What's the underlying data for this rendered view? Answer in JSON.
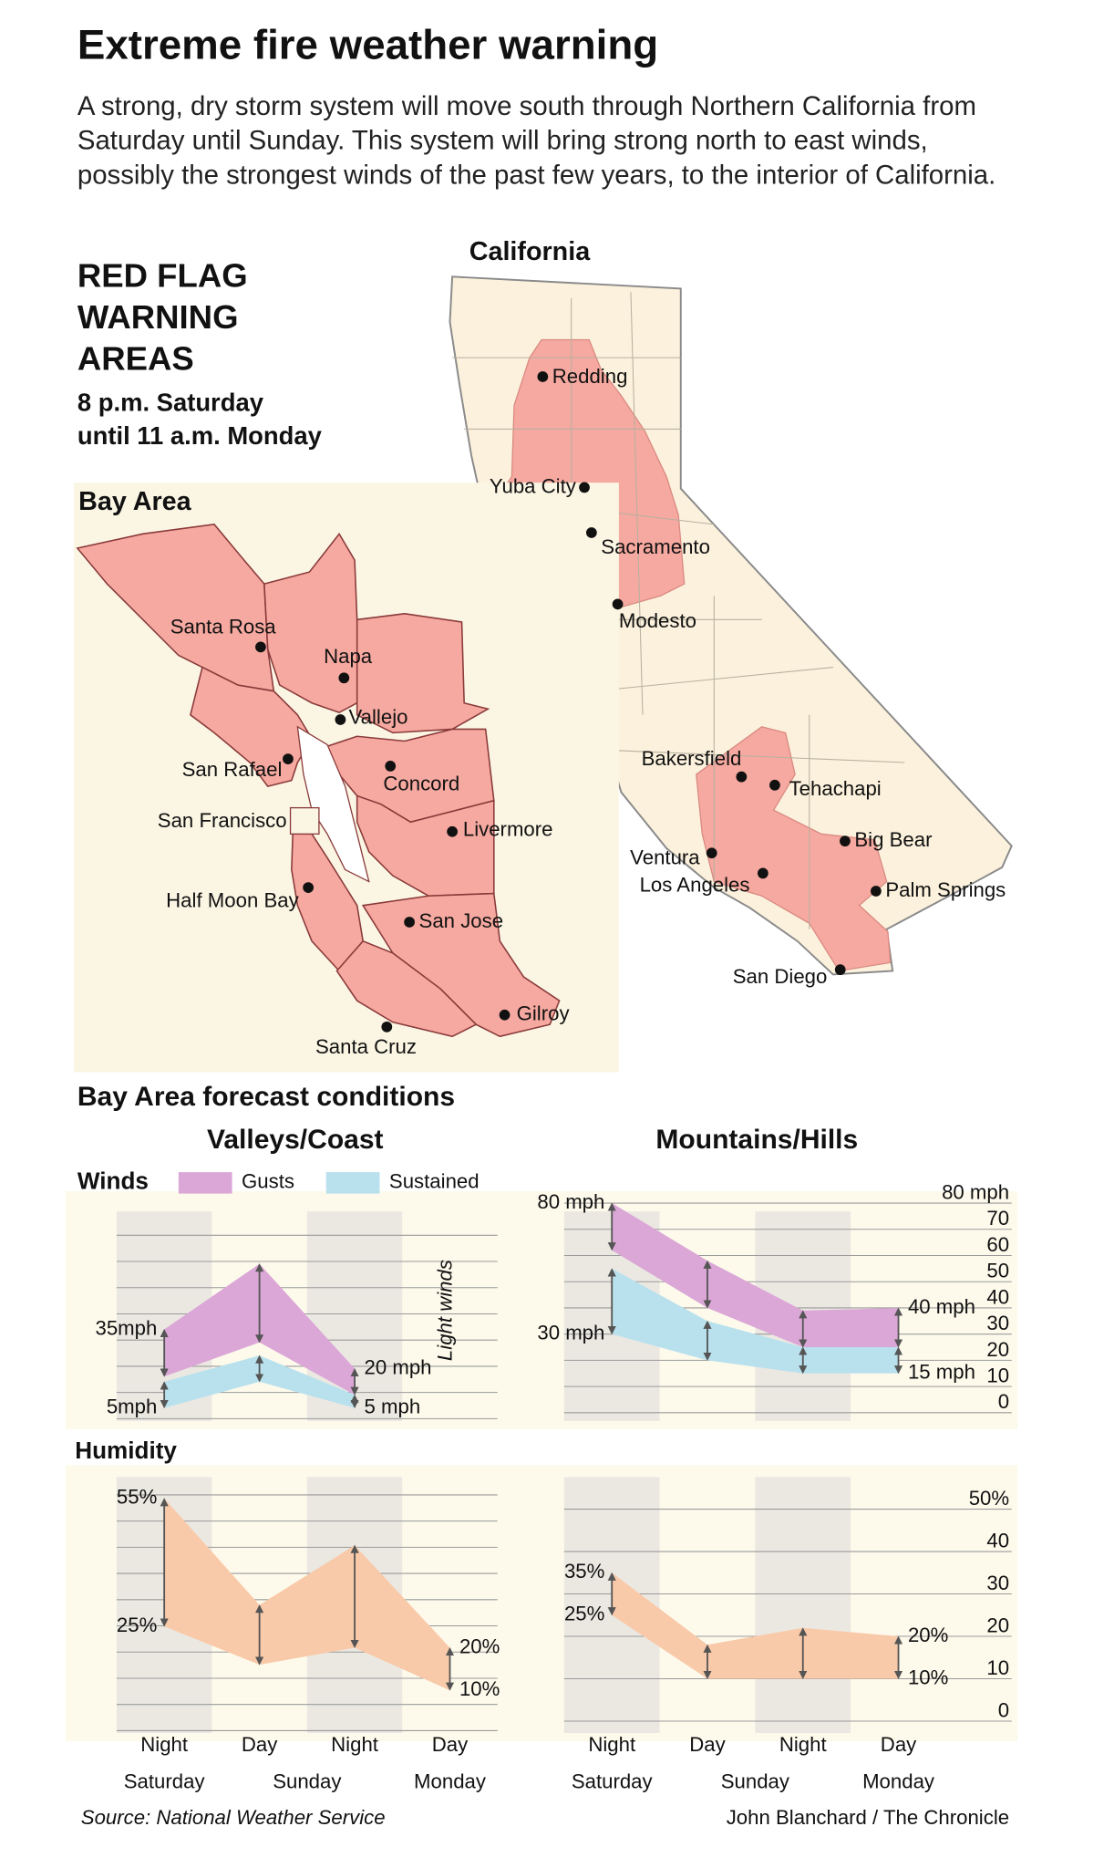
{
  "title": "Extreme fire weather warning",
  "intro": "A strong, dry storm system will move south through Northern California from Saturday until Sunday. This system will bring strong north to east winds, possibly the strongest winds of the past few years, to the interior of California.",
  "warning": {
    "heading": [
      "RED FLAG",
      "WARNING",
      "AREAS"
    ],
    "period": [
      "8 p.m. Saturday",
      "until 11 a.m. Monday"
    ]
  },
  "california_map": {
    "title": "California",
    "cities": [
      "Redding",
      "Yuba City",
      "Sacramento",
      "Modesto",
      "Bakersfield",
      "Tehachapi",
      "Big Bear",
      "Ventura",
      "Los Angeles",
      "Palm Springs",
      "San Diego"
    ]
  },
  "bay_map": {
    "title": "Bay Area",
    "cities": [
      "Santa Rosa",
      "Napa",
      "Vallejo",
      "San Rafael",
      "Concord",
      "San Francisco",
      "Livermore",
      "Half Moon Bay",
      "San Jose",
      "Gilroy",
      "Santa Cruz"
    ]
  },
  "forecast": {
    "title": "Bay Area forecast conditions",
    "columns": [
      "Valleys/Coast",
      "Mountains/Hills"
    ],
    "rows": [
      "Winds",
      "Humidity"
    ],
    "categories": [
      "Night",
      "Day",
      "Night",
      "Day"
    ],
    "groups": [
      "Saturday",
      "Sunday",
      "Monday"
    ]
  },
  "chart_data": [
    {
      "type": "range",
      "ylim": [
        0,
        80
      ],
      "annotation": "Light winds",
      "series": [
        {
          "name": "Gusts",
          "color": "#dba7d7",
          "high": [
            35,
            60,
            20,
            null
          ],
          "low": [
            17,
            30,
            10,
            null
          ],
          "high_labels": [
            "35mph",
            null,
            "20 mph",
            null
          ],
          "low_labels": [
            null,
            null,
            null,
            null
          ]
        },
        {
          "name": "Sustained",
          "color": "#b9e1ed",
          "high": [
            15,
            25,
            10,
            null
          ],
          "low": [
            5,
            15,
            5,
            null
          ],
          "high_labels": [
            null,
            null,
            null,
            null
          ],
          "low_labels": [
            "5mph",
            null,
            "5 mph",
            null
          ]
        }
      ]
    },
    {
      "type": "range",
      "ylim": [
        0,
        80
      ],
      "yticks": [
        0,
        10,
        20,
        30,
        40,
        50,
        60,
        70,
        {
          "value": 80,
          "label": "80 mph"
        }
      ],
      "series": [
        {
          "color": "#dba7d7",
          "high": [
            80,
            58,
            39,
            40
          ],
          "low": [
            62,
            40,
            25,
            25
          ],
          "high_labels": [
            "80 mph",
            null,
            null,
            "40 mph"
          ],
          "low_labels": [
            null,
            null,
            null,
            null
          ]
        },
        {
          "color": "#b9e1ed",
          "high": [
            55,
            35,
            25,
            25
          ],
          "low": [
            30,
            20,
            15,
            15
          ],
          "high_labels": [
            null,
            null,
            null,
            null
          ],
          "low_labels": [
            "30 mph",
            null,
            null,
            "15 mph"
          ]
        }
      ]
    },
    {
      "type": "range",
      "ylim": [
        0,
        60
      ],
      "series": [
        {
          "color": "#f9caa9",
          "high": [
            55,
            30,
            44,
            20
          ],
          "low": [
            25,
            16,
            20,
            10
          ],
          "high_labels": [
            "55%",
            null,
            null,
            "20%"
          ],
          "low_labels": [
            "25%",
            null,
            null,
            "10%"
          ]
        }
      ]
    },
    {
      "type": "range",
      "ylim": [
        0,
        50
      ],
      "yticks": [
        0,
        10,
        20,
        30,
        40,
        {
          "value": 50,
          "label": "50%"
        }
      ],
      "series": [
        {
          "color": "#f9caa9",
          "high": [
            35,
            18,
            22,
            20
          ],
          "low": [
            25,
            10,
            10,
            10
          ],
          "high_labels": [
            "35%",
            null,
            null,
            "20%"
          ],
          "low_labels": [
            "25%",
            null,
            null,
            "10%"
          ]
        }
      ]
    }
  ],
  "source": "Source: National Weather Service",
  "credit": "John Blanchard / The Chronicle"
}
